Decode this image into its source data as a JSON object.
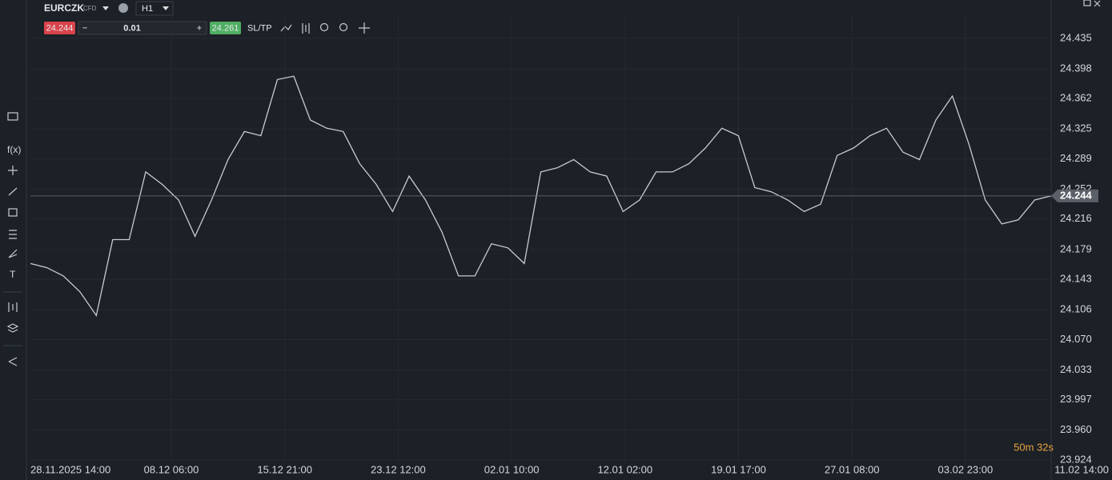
{
  "header": {
    "symbol": "EURCZK",
    "instrument_type": "CFD",
    "timeframe": "H1",
    "sell_price": "24.244",
    "quantity": "0.01",
    "buy_price": "24.261",
    "sltp": "SL/TP"
  },
  "toolbar": {
    "function": "f(x)",
    "text_tool": "T"
  },
  "chart_data": {
    "type": "line",
    "x_labels": [
      "28.11.2025 14:00",
      "08.12 06:00",
      "15.12 21:00",
      "23.12 12:00",
      "02.01 10:00",
      "12.01 02:00",
      "19.01 17:00",
      "27.01 08:00",
      "03.02 23:00",
      "11.02 14:00"
    ],
    "color": "#c8ccd2",
    "values": [
      24.162,
      24.157,
      24.147,
      24.128,
      24.099,
      24.191,
      24.191,
      24.273,
      24.258,
      24.239,
      24.195,
      24.239,
      24.288,
      24.322,
      24.317,
      24.385,
      24.389,
      24.336,
      24.326,
      24.322,
      24.283,
      24.258,
      24.225,
      24.268,
      24.239,
      24.2,
      24.147,
      24.147,
      24.186,
      24.181,
      24.162,
      24.273,
      24.278,
      24.288,
      24.273,
      24.268,
      24.225,
      24.239,
      24.273,
      24.273,
      24.283,
      24.302,
      24.326,
      24.317,
      24.254,
      24.249,
      24.239,
      24.225,
      24.234,
      24.293,
      24.302,
      24.317,
      24.326,
      24.297,
      24.288,
      24.336,
      24.365,
      24.307,
      24.239,
      24.21,
      24.215,
      24.239,
      24.244
    ],
    "current_price": 24.244,
    "ylim": [
      23.921,
      24.462
    ],
    "yticks": [
      24.435,
      24.398,
      24.362,
      24.325,
      24.289,
      24.252,
      24.216,
      24.179,
      24.143,
      24.106,
      {
        "value": 24.07,
        "label": "24.070"
      },
      24.033,
      23.997,
      {
        "value": 23.96,
        "label": "23.960"
      },
      23.924
    ],
    "grid": true,
    "timer": "50m 32s"
  }
}
